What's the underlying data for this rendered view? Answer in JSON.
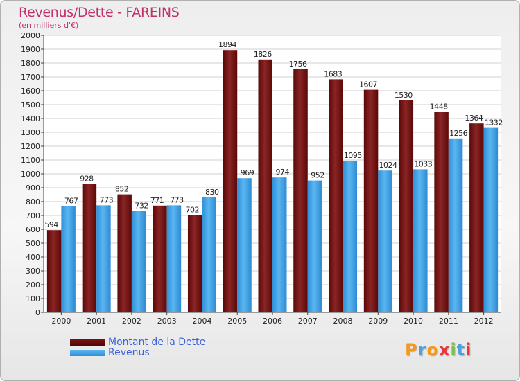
{
  "title": "Revenus/Dette - FAREINS",
  "subtitle": "(en milliers d'€)",
  "colors": {
    "dette": "#6b0a0a",
    "revenus": "#3aa0e6",
    "title": "#c0306a",
    "legend_text": "#3a62d8"
  },
  "legend": {
    "dette_label": "Montant de la Dette",
    "revenus_label": "Revenus"
  },
  "logo": {
    "letters": [
      "P",
      "r",
      "o",
      "x",
      "i",
      "t",
      "i"
    ],
    "colors": [
      "#f39a1e",
      "#4aa3df",
      "#f39a1e",
      "#e23a3a",
      "#7cc242",
      "#4aa3df",
      "#e23a3a"
    ]
  },
  "chart_data": {
    "type": "bar",
    "title": "Revenus/Dette - FAREINS",
    "ylabel": "(en milliers d'€)",
    "xlabel": "",
    "ylim": [
      0,
      2000
    ],
    "ytick_step": 100,
    "grid": true,
    "legend_position": "bottom-left",
    "categories": [
      "2000",
      "2001",
      "2002",
      "2003",
      "2004",
      "2005",
      "2006",
      "2007",
      "2008",
      "2009",
      "2010",
      "2011",
      "2012"
    ],
    "series": [
      {
        "name": "Montant de la Dette",
        "values": [
          594,
          928,
          852,
          771,
          702,
          1894,
          1826,
          1756,
          1683,
          1607,
          1530,
          1448,
          1364
        ]
      },
      {
        "name": "Revenus",
        "values": [
          767,
          773,
          732,
          773,
          830,
          969,
          974,
          952,
          1095,
          1024,
          1033,
          1256,
          1332
        ]
      }
    ]
  }
}
